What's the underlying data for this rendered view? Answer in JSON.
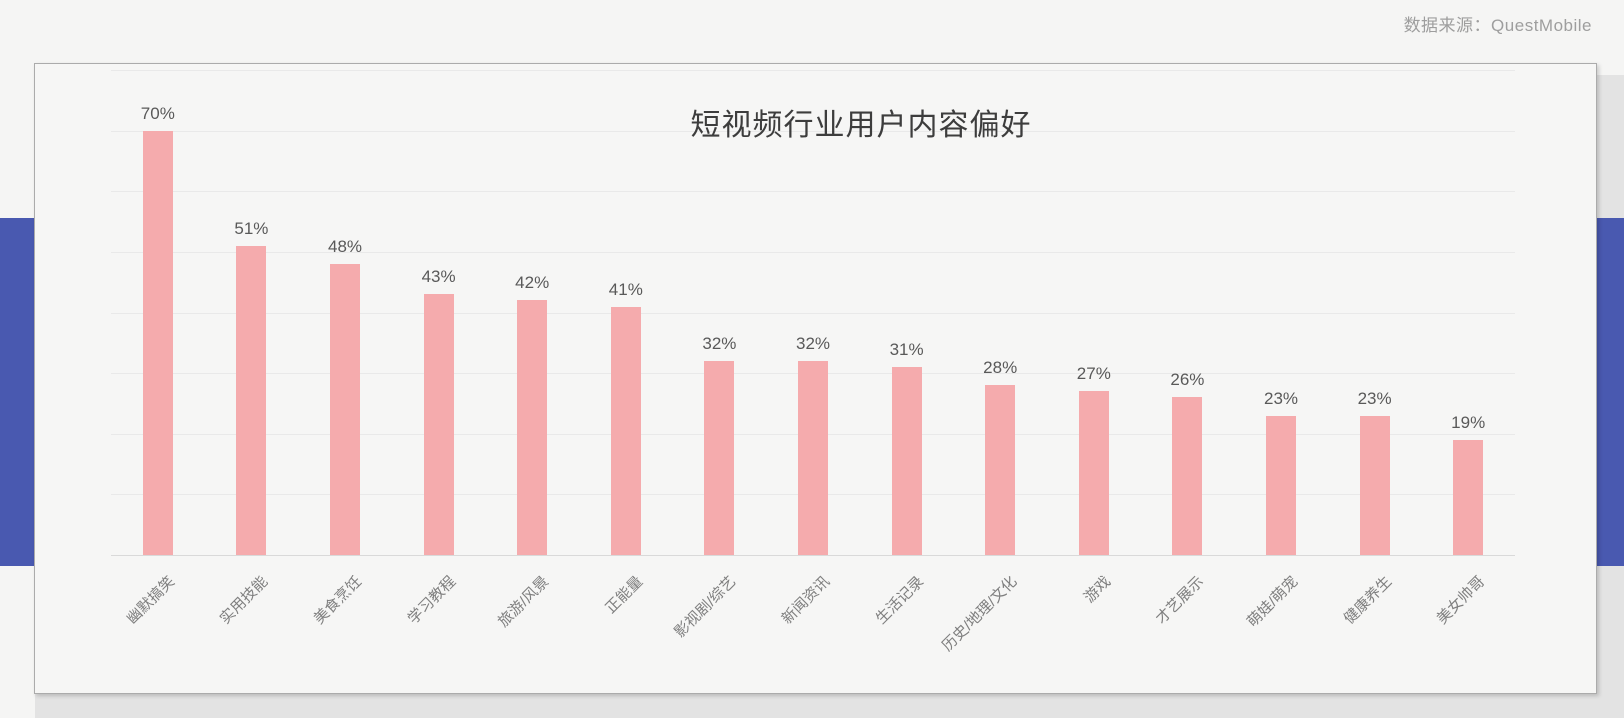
{
  "page": {
    "source_label": "数据来源：QuestMobile"
  },
  "colors": {
    "bar_fill": "#f5abad",
    "accent_band": "#4959b0",
    "page_background": "#f5f5f4",
    "card_background": "#f6f6f5",
    "outer_background": "#e3e3e3",
    "gridline": "#e9e9e9",
    "axis_line": "#d9d9d9",
    "title_text": "#3d3d3d",
    "value_label_text": "#595959",
    "category_label_text": "#7f7f7f",
    "source_text": "#9e9e9e"
  },
  "chart_data": {
    "type": "bar",
    "title": "短视频行业用户内容偏好",
    "categories": [
      "幽默搞笑",
      "实用技能",
      "美食烹饪",
      "学习教程",
      "旅游/风景",
      "正能量",
      "影视剧/综艺",
      "新闻资讯",
      "生活记录",
      "历史/地理/文化",
      "游戏",
      "才艺展示",
      "萌娃/萌宠",
      "健康养生",
      "美女帅哥"
    ],
    "values": [
      70,
      51,
      48,
      43,
      42,
      41,
      32,
      32,
      31,
      28,
      27,
      26,
      23,
      23,
      19
    ],
    "data_labels": [
      "70%",
      "51%",
      "48%",
      "43%",
      "42%",
      "41%",
      "32%",
      "32%",
      "31%",
      "28%",
      "27%",
      "26%",
      "23%",
      "23%",
      "19%"
    ],
    "unit": "%",
    "xlabel": "",
    "ylabel": "",
    "ylim": [
      0,
      80
    ],
    "grid_step": 10,
    "grid": "on",
    "legend": "none",
    "y_axis_tick_labels": "hidden",
    "category_label_rotation_deg": -45
  }
}
